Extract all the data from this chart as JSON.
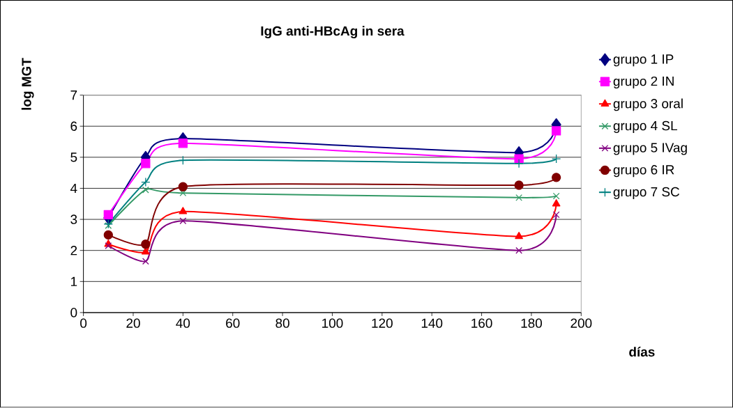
{
  "chart_data": {
    "type": "line",
    "title": "IgG anti-HBcAg in sera",
    "xlabel": "días",
    "ylabel": "log MGT",
    "x": [
      10,
      25,
      40,
      175,
      190
    ],
    "series": [
      {
        "name": "grupo 1 IP",
        "color": "#000080",
        "marker": "diamond",
        "values": [
          3.05,
          5.0,
          5.6,
          5.15,
          6.05
        ]
      },
      {
        "name": "grupo 2 IN",
        "color": "#ff00ff",
        "marker": "square",
        "values": [
          3.15,
          4.8,
          5.45,
          4.95,
          5.85
        ]
      },
      {
        "name": "grupo 3 oral",
        "color": "#ff0000",
        "marker": "triangle",
        "values": [
          2.2,
          1.95,
          3.25,
          2.45,
          3.5
        ]
      },
      {
        "name": "grupo 4 SL",
        "color": "#339966",
        "marker": "cross",
        "values": [
          2.8,
          3.95,
          3.85,
          3.7,
          3.75
        ]
      },
      {
        "name": "grupo 5 IVag",
        "color": "#800080",
        "marker": "cross",
        "values": [
          2.15,
          1.65,
          2.95,
          2.0,
          3.15
        ]
      },
      {
        "name": "grupo 6 IR",
        "color": "#800000",
        "marker": "circle",
        "values": [
          2.5,
          2.2,
          4.05,
          4.1,
          4.35
        ]
      },
      {
        "name": "grupo 7 SC",
        "color": "#008080",
        "marker": "plus",
        "values": [
          2.85,
          4.2,
          4.9,
          4.8,
          4.95
        ]
      }
    ],
    "xlim": [
      0,
      200
    ],
    "xticks": [
      0,
      20,
      40,
      60,
      80,
      100,
      120,
      140,
      160,
      180,
      200
    ],
    "ylim": [
      0,
      7
    ],
    "yticks": [
      0,
      1,
      2,
      3,
      4,
      5,
      6,
      7
    ],
    "grid": "y",
    "legend": "right"
  }
}
